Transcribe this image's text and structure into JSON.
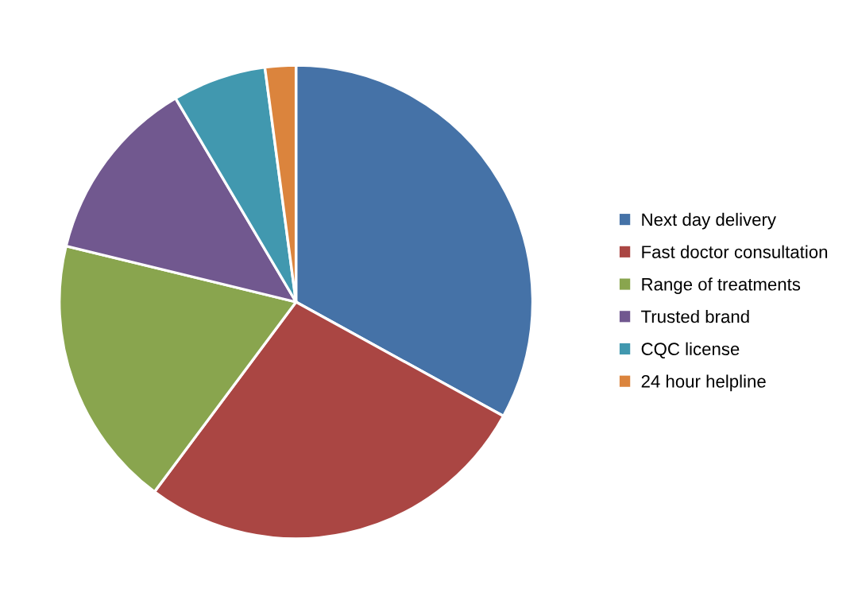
{
  "chart_data": {
    "type": "pie",
    "categories": [
      "Next day delivery",
      "Fast doctor consultation",
      "Range of treatments",
      "Trusted brand",
      "CQC license",
      "24 hour helpline"
    ],
    "values": [
      33,
      27.2,
      18.6,
      12.7,
      6.4,
      2.1
    ],
    "colors": [
      "#4572a7",
      "#aa4643",
      "#89a54e",
      "#71588f",
      "#4198af",
      "#db843d"
    ],
    "legend": "right"
  }
}
